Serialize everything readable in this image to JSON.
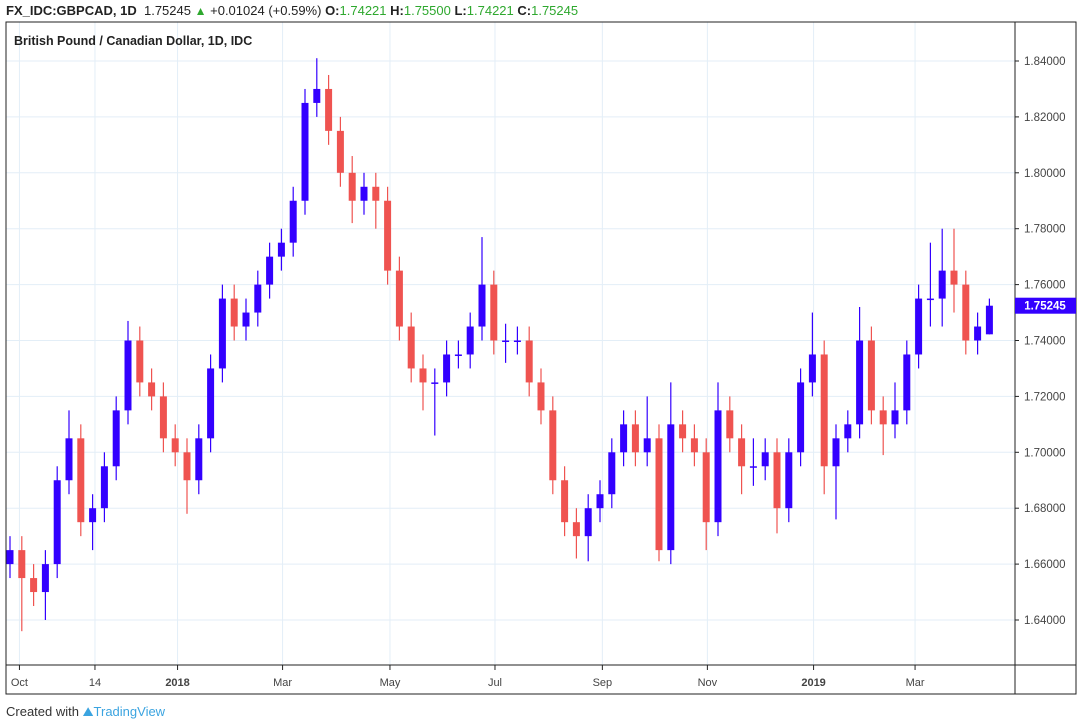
{
  "header": {
    "symbol": "FX_IDC:GBPCAD, 1D",
    "last": "1.75245",
    "up_arrow": "▲",
    "change": "+0.01024 (+0.59%)",
    "o_label": "O:",
    "o": "1.74221",
    "h_label": "H:",
    "h": "1.75500",
    "l_label": "L:",
    "l": "1.74221",
    "c_label": "C:",
    "c": "1.75245"
  },
  "footer": {
    "created_with": "Created with",
    "brand": "TradingView"
  },
  "colors": {
    "up": "#3300ff",
    "down": "#ef5350",
    "grid": "#e3eef7",
    "label_bg": "#3300ff"
  },
  "chart_data": {
    "type": "candlestick",
    "title": "British Pound / Canadian Dollar, 1D, IDC",
    "ylim": [
      1.625,
      1.8475
    ],
    "yticks": [
      "1.84000",
      "1.82000",
      "1.80000",
      "1.78000",
      "1.76000",
      "1.74000",
      "1.72000",
      "1.70000",
      "1.68000",
      "1.66000",
      "1.64000"
    ],
    "xticks": [
      {
        "label": "Oct",
        "index": 0.8,
        "bold": false
      },
      {
        "label": "14",
        "index": 7.2,
        "bold": false
      },
      {
        "label": "2018",
        "index": 14.2,
        "bold": true
      },
      {
        "label": "Mar",
        "index": 23.1,
        "bold": false
      },
      {
        "label": "May",
        "index": 32.2,
        "bold": false
      },
      {
        "label": "Jul",
        "index": 41.1,
        "bold": false
      },
      {
        "label": "Sep",
        "index": 50.2,
        "bold": false
      },
      {
        "label": "Nov",
        "index": 59.1,
        "bold": false
      },
      {
        "label": "2019",
        "index": 68.1,
        "bold": true
      },
      {
        "label": "Mar",
        "index": 76.7,
        "bold": false
      }
    ],
    "last_price_label": "1.75245",
    "last_price": 1.75245,
    "candles_ohlc": [
      [
        1.66,
        1.67,
        1.655,
        1.665
      ],
      [
        1.665,
        1.67,
        1.636,
        1.655
      ],
      [
        1.655,
        1.66,
        1.645,
        1.65
      ],
      [
        1.65,
        1.665,
        1.64,
        1.66
      ],
      [
        1.66,
        1.695,
        1.655,
        1.69
      ],
      [
        1.69,
        1.715,
        1.685,
        1.705
      ],
      [
        1.705,
        1.71,
        1.67,
        1.675
      ],
      [
        1.675,
        1.685,
        1.665,
        1.68
      ],
      [
        1.68,
        1.7,
        1.675,
        1.695
      ],
      [
        1.695,
        1.72,
        1.69,
        1.715
      ],
      [
        1.715,
        1.747,
        1.71,
        1.74
      ],
      [
        1.74,
        1.745,
        1.72,
        1.725
      ],
      [
        1.725,
        1.73,
        1.715,
        1.72
      ],
      [
        1.72,
        1.725,
        1.7,
        1.705
      ],
      [
        1.705,
        1.71,
        1.695,
        1.7
      ],
      [
        1.7,
        1.705,
        1.678,
        1.69
      ],
      [
        1.69,
        1.71,
        1.685,
        1.705
      ],
      [
        1.705,
        1.735,
        1.7,
        1.73
      ],
      [
        1.73,
        1.76,
        1.725,
        1.755
      ],
      [
        1.755,
        1.76,
        1.74,
        1.745
      ],
      [
        1.745,
        1.755,
        1.74,
        1.75
      ],
      [
        1.75,
        1.765,
        1.745,
        1.76
      ],
      [
        1.76,
        1.775,
        1.755,
        1.77
      ],
      [
        1.77,
        1.78,
        1.765,
        1.775
      ],
      [
        1.775,
        1.795,
        1.77,
        1.79
      ],
      [
        1.79,
        1.83,
        1.785,
        1.825
      ],
      [
        1.825,
        1.841,
        1.82,
        1.83
      ],
      [
        1.83,
        1.835,
        1.81,
        1.815
      ],
      [
        1.815,
        1.82,
        1.795,
        1.8
      ],
      [
        1.8,
        1.806,
        1.782,
        1.79
      ],
      [
        1.79,
        1.8,
        1.785,
        1.795
      ],
      [
        1.795,
        1.8,
        1.78,
        1.79
      ],
      [
        1.79,
        1.795,
        1.76,
        1.765
      ],
      [
        1.765,
        1.77,
        1.74,
        1.745
      ],
      [
        1.745,
        1.75,
        1.725,
        1.73
      ],
      [
        1.73,
        1.735,
        1.715,
        1.725
      ],
      [
        1.725,
        1.73,
        1.706,
        1.725
      ],
      [
        1.725,
        1.74,
        1.72,
        1.735
      ],
      [
        1.735,
        1.74,
        1.73,
        1.735
      ],
      [
        1.735,
        1.75,
        1.73,
        1.745
      ],
      [
        1.745,
        1.777,
        1.74,
        1.76
      ],
      [
        1.76,
        1.765,
        1.735,
        1.74
      ],
      [
        1.74,
        1.746,
        1.732,
        1.74
      ],
      [
        1.74,
        1.745,
        1.735,
        1.74
      ],
      [
        1.74,
        1.745,
        1.72,
        1.725
      ],
      [
        1.725,
        1.73,
        1.71,
        1.715
      ],
      [
        1.715,
        1.72,
        1.685,
        1.69
      ],
      [
        1.69,
        1.695,
        1.67,
        1.675
      ],
      [
        1.675,
        1.68,
        1.662,
        1.67
      ],
      [
        1.67,
        1.685,
        1.661,
        1.68
      ],
      [
        1.68,
        1.69,
        1.675,
        1.685
      ],
      [
        1.685,
        1.705,
        1.68,
        1.7
      ],
      [
        1.7,
        1.715,
        1.695,
        1.71
      ],
      [
        1.71,
        1.715,
        1.695,
        1.7
      ],
      [
        1.7,
        1.72,
        1.695,
        1.705
      ],
      [
        1.705,
        1.71,
        1.661,
        1.665
      ],
      [
        1.665,
        1.725,
        1.66,
        1.71
      ],
      [
        1.71,
        1.715,
        1.7,
        1.705
      ],
      [
        1.705,
        1.71,
        1.695,
        1.7
      ],
      [
        1.7,
        1.705,
        1.665,
        1.675
      ],
      [
        1.675,
        1.725,
        1.67,
        1.715
      ],
      [
        1.715,
        1.72,
        1.7,
        1.705
      ],
      [
        1.705,
        1.71,
        1.685,
        1.695
      ],
      [
        1.695,
        1.705,
        1.688,
        1.695
      ],
      [
        1.695,
        1.705,
        1.69,
        1.7
      ],
      [
        1.7,
        1.705,
        1.671,
        1.68
      ],
      [
        1.68,
        1.705,
        1.675,
        1.7
      ],
      [
        1.7,
        1.73,
        1.695,
        1.725
      ],
      [
        1.725,
        1.75,
        1.72,
        1.735
      ],
      [
        1.735,
        1.74,
        1.685,
        1.695
      ],
      [
        1.695,
        1.71,
        1.676,
        1.705
      ],
      [
        1.705,
        1.715,
        1.7,
        1.71
      ],
      [
        1.71,
        1.752,
        1.705,
        1.74
      ],
      [
        1.74,
        1.745,
        1.71,
        1.715
      ],
      [
        1.715,
        1.72,
        1.699,
        1.71
      ],
      [
        1.71,
        1.725,
        1.705,
        1.715
      ],
      [
        1.715,
        1.74,
        1.71,
        1.735
      ],
      [
        1.735,
        1.76,
        1.73,
        1.755
      ],
      [
        1.755,
        1.775,
        1.745,
        1.755
      ],
      [
        1.755,
        1.78,
        1.745,
        1.765
      ],
      [
        1.765,
        1.78,
        1.75,
        1.76
      ],
      [
        1.76,
        1.765,
        1.735,
        1.74
      ],
      [
        1.74,
        1.75,
        1.735,
        1.745
      ],
      [
        1.74221,
        1.755,
        1.74221,
        1.75245
      ]
    ]
  }
}
